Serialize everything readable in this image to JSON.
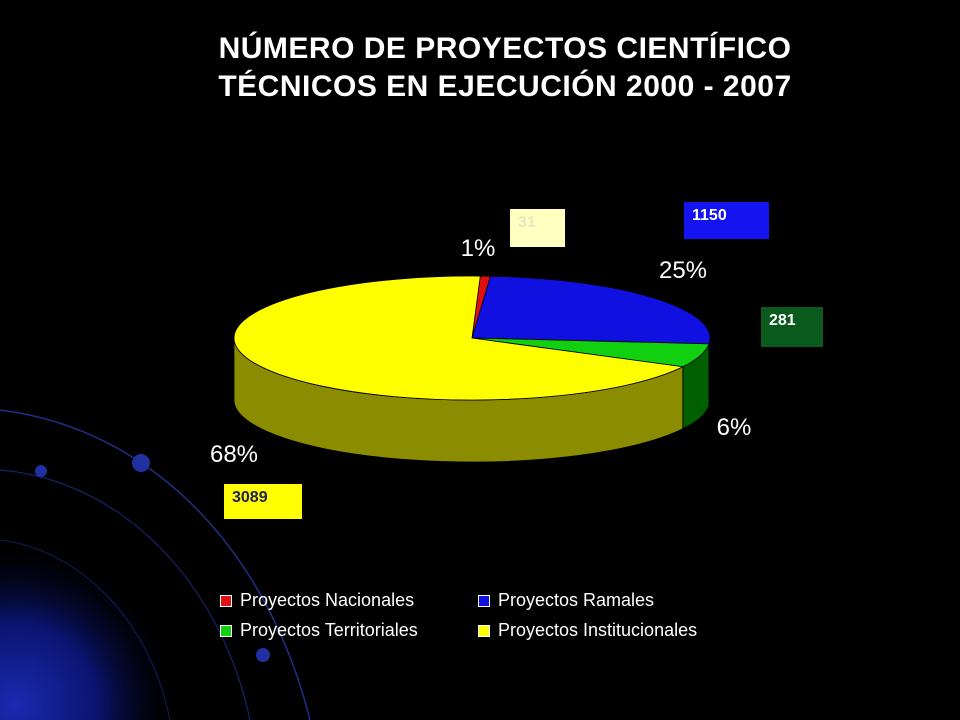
{
  "title": {
    "line1": "NÚMERO DE PROYECTOS CIENTÍFICO",
    "line2": "TÉCNICOS EN EJECUCIÓN 2000 - 2007"
  },
  "chart_data": {
    "type": "pie",
    "style": "3d",
    "title": "NÚMERO DE PROYECTOS CIENTÍFICO TÉCNICOS EN EJECUCIÓN 2000 - 2007",
    "legend_position": "bottom",
    "slices": [
      {
        "name": "Proyectos Nacionales",
        "value": 31,
        "percent_label": "1%",
        "color": "#e01010",
        "side_color": "#801010",
        "value_box_bg": "#ffffc0",
        "value_box_fg": "#e8e8c0"
      },
      {
        "name": "Proyectos Ramales",
        "value": 1150,
        "percent_label": "25%",
        "color": "#1010e0",
        "side_color": "#000080",
        "value_box_bg": "#1414f0",
        "value_box_fg": "#ffffff"
      },
      {
        "name": "Proyectos Territoriales",
        "value": 281,
        "percent_label": "6%",
        "color": "#10d010",
        "side_color": "#006000",
        "value_box_bg": "#0a5a1e",
        "value_box_fg": "#ffffff"
      },
      {
        "name": "Proyectos Institucionales",
        "value": 3089,
        "percent_label": "68%",
        "color": "#ffff00",
        "side_color": "#8c8c00",
        "value_box_bg": "#ffff00",
        "value_box_fg": "#202060"
      }
    ]
  }
}
